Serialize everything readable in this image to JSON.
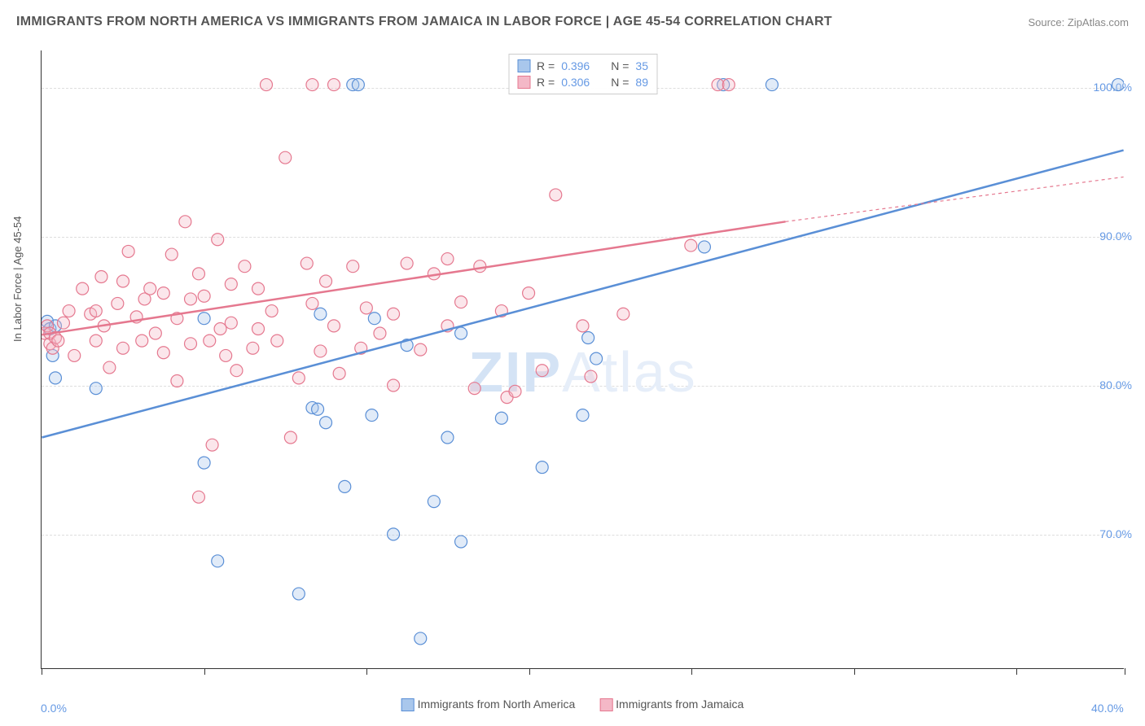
{
  "title": "IMMIGRANTS FROM NORTH AMERICA VS IMMIGRANTS FROM JAMAICA IN LABOR FORCE | AGE 45-54 CORRELATION CHART",
  "source_prefix": "Source: ",
  "source_name": "ZipAtlas.com",
  "ylabel": "In Labor Force | Age 45-54",
  "watermark_a": "ZIP",
  "watermark_b": "Atlas",
  "chart": {
    "type": "scatter",
    "xlim": [
      0,
      40
    ],
    "ylim": [
      61,
      102.5
    ],
    "xticks_major": [
      0,
      40
    ],
    "xticks_minor": [
      6,
      12,
      18,
      24,
      30,
      36
    ],
    "yticks": [
      70,
      80,
      90,
      100
    ],
    "ytick_labels": [
      "70.0%",
      "80.0%",
      "90.0%",
      "100.0%"
    ],
    "xtick_labels": [
      "0.0%",
      "40.0%"
    ],
    "background_color": "#ffffff",
    "grid_color": "#dddddd",
    "series": [
      {
        "key": "na",
        "name": "Immigrants from North America",
        "color_fill": "#a9c7ec",
        "color_stroke": "#5a8fd6",
        "marker_r": 7.5,
        "R": "0.396",
        "N": "35",
        "trend": {
          "x1": 0,
          "y1": 76.5,
          "x2": 40,
          "y2": 95.8
        },
        "points": [
          [
            0.2,
            84.3
          ],
          [
            0.3,
            83.8
          ],
          [
            0.5,
            84.0
          ],
          [
            0.4,
            82.0
          ],
          [
            0.5,
            80.5
          ],
          [
            2.0,
            79.8
          ],
          [
            6.0,
            74.8
          ],
          [
            6.5,
            68.2
          ],
          [
            9.5,
            66.0
          ],
          [
            10.0,
            78.5
          ],
          [
            10.2,
            78.4
          ],
          [
            10.5,
            77.5
          ],
          [
            11.2,
            73.2
          ],
          [
            12.2,
            78.0
          ],
          [
            13.5,
            82.7
          ],
          [
            13.0,
            70.0
          ],
          [
            14.0,
            63.0
          ],
          [
            14.5,
            72.2
          ],
          [
            15.0,
            76.5
          ],
          [
            15.5,
            83.5
          ],
          [
            15.5,
            69.5
          ],
          [
            17.0,
            77.8
          ],
          [
            18.5,
            74.5
          ],
          [
            20.0,
            78.0
          ],
          [
            20.2,
            83.2
          ],
          [
            24.5,
            89.3
          ],
          [
            27.0,
            100.2
          ],
          [
            25.2,
            100.2
          ],
          [
            12.3,
            84.5
          ],
          [
            11.5,
            100.2
          ],
          [
            11.7,
            100.2
          ],
          [
            6.0,
            84.5
          ],
          [
            20.5,
            81.8
          ],
          [
            39.8,
            100.2
          ],
          [
            10.3,
            84.8
          ]
        ]
      },
      {
        "key": "jm",
        "name": "Immigrants from Jamaica",
        "color_fill": "#f4b8c7",
        "color_stroke": "#e5788f",
        "marker_r": 7.5,
        "R": "0.306",
        "N": "89",
        "trend": {
          "x1": 0,
          "y1": 83.4,
          "x2": 27.5,
          "y2": 91.0
        },
        "trend_ext": {
          "x1": 27.5,
          "y1": 91.0,
          "x2": 40,
          "y2": 94.0
        },
        "points": [
          [
            0.1,
            83.5
          ],
          [
            0.2,
            84.0
          ],
          [
            0.3,
            82.8
          ],
          [
            0.3,
            83.5
          ],
          [
            0.4,
            82.5
          ],
          [
            0.5,
            83.2
          ],
          [
            0.6,
            83.0
          ],
          [
            0.8,
            84.2
          ],
          [
            1.0,
            85.0
          ],
          [
            1.2,
            82.0
          ],
          [
            1.5,
            86.5
          ],
          [
            1.8,
            84.8
          ],
          [
            2.0,
            83.0
          ],
          [
            2.0,
            85.0
          ],
          [
            2.2,
            87.3
          ],
          [
            2.3,
            84.0
          ],
          [
            2.5,
            81.2
          ],
          [
            2.8,
            85.5
          ],
          [
            3.0,
            82.5
          ],
          [
            3.0,
            87.0
          ],
          [
            3.2,
            89.0
          ],
          [
            3.5,
            84.6
          ],
          [
            3.7,
            83.0
          ],
          [
            3.8,
            85.8
          ],
          [
            4.0,
            86.5
          ],
          [
            4.2,
            83.5
          ],
          [
            4.5,
            86.2
          ],
          [
            4.5,
            82.2
          ],
          [
            4.8,
            88.8
          ],
          [
            5.0,
            84.5
          ],
          [
            5.0,
            80.3
          ],
          [
            5.3,
            91.0
          ],
          [
            5.5,
            85.8
          ],
          [
            5.5,
            82.8
          ],
          [
            5.8,
            87.5
          ],
          [
            5.8,
            72.5
          ],
          [
            6.0,
            86.0
          ],
          [
            6.2,
            83.0
          ],
          [
            6.3,
            76.0
          ],
          [
            6.5,
            89.8
          ],
          [
            6.6,
            83.8
          ],
          [
            6.8,
            82.0
          ],
          [
            7.0,
            86.8
          ],
          [
            7.0,
            84.2
          ],
          [
            7.2,
            81.0
          ],
          [
            7.5,
            88.0
          ],
          [
            7.8,
            82.5
          ],
          [
            8.0,
            86.5
          ],
          [
            8.0,
            83.8
          ],
          [
            8.3,
            100.2
          ],
          [
            8.5,
            85.0
          ],
          [
            8.7,
            83.0
          ],
          [
            9.0,
            95.3
          ],
          [
            9.2,
            76.5
          ],
          [
            9.5,
            80.5
          ],
          [
            9.8,
            88.2
          ],
          [
            10.0,
            85.5
          ],
          [
            10.0,
            100.2
          ],
          [
            10.3,
            82.3
          ],
          [
            10.5,
            87.0
          ],
          [
            10.8,
            84.0
          ],
          [
            10.8,
            100.2
          ],
          [
            11.0,
            80.8
          ],
          [
            11.5,
            88.0
          ],
          [
            11.8,
            82.5
          ],
          [
            12.0,
            85.2
          ],
          [
            12.5,
            83.5
          ],
          [
            13.0,
            84.8
          ],
          [
            13.0,
            80.0
          ],
          [
            13.5,
            88.2
          ],
          [
            14.0,
            82.4
          ],
          [
            14.5,
            87.5
          ],
          [
            15.0,
            88.5
          ],
          [
            15.0,
            84.0
          ],
          [
            15.5,
            85.6
          ],
          [
            16.0,
            79.8
          ],
          [
            16.2,
            88.0
          ],
          [
            17.0,
            85.0
          ],
          [
            17.2,
            79.2
          ],
          [
            17.5,
            79.6
          ],
          [
            18.0,
            86.2
          ],
          [
            18.5,
            81.0
          ],
          [
            19.0,
            92.8
          ],
          [
            20.0,
            84.0
          ],
          [
            20.3,
            80.6
          ],
          [
            21.5,
            84.8
          ],
          [
            24.0,
            89.4
          ],
          [
            25.0,
            100.2
          ],
          [
            25.4,
            100.2
          ]
        ]
      }
    ]
  },
  "legend_bottom": [
    {
      "label": "Immigrants from North America",
      "fill": "#a9c7ec",
      "stroke": "#5a8fd6"
    },
    {
      "label": "Immigrants from Jamaica",
      "fill": "#f4b8c7",
      "stroke": "#e5788f"
    }
  ]
}
